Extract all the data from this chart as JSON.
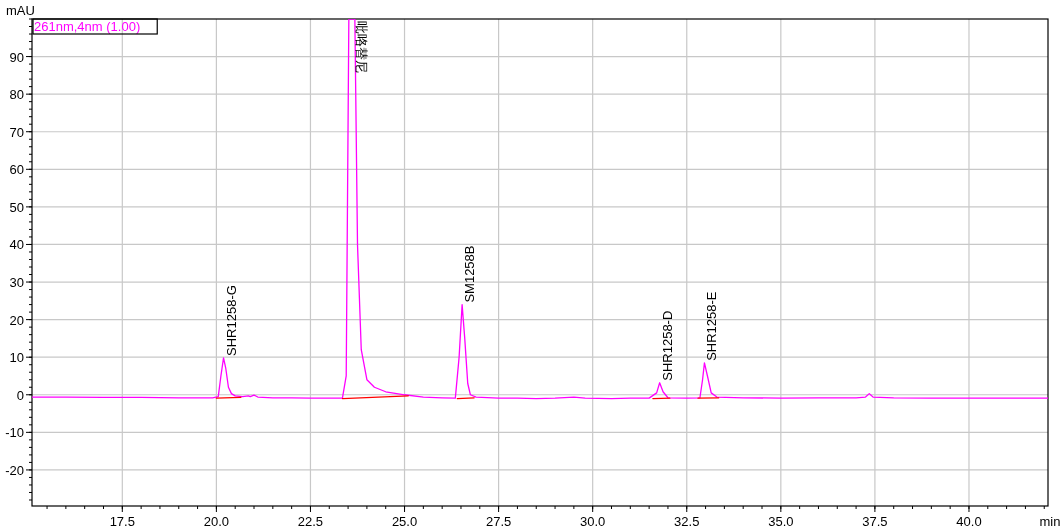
{
  "chart_data": {
    "type": "line",
    "xlabel": "min",
    "ylabel": "mAU",
    "xlim": [
      15.1,
      42.1
    ],
    "ylim": [
      -29.6,
      100
    ],
    "xticks": [
      {
        "value": 17.5,
        "label": "17.5"
      },
      {
        "value": 20,
        "label": "20.0"
      },
      {
        "value": 22.5,
        "label": "22.5"
      },
      {
        "value": 25,
        "label": "25.0"
      },
      {
        "value": 27.5,
        "label": "27.5"
      },
      {
        "value": 30,
        "label": "30.0"
      },
      {
        "value": 32.5,
        "label": "32.5"
      },
      {
        "value": 35,
        "label": "35.0"
      },
      {
        "value": 37.5,
        "label": "37.5"
      },
      {
        "value": 40,
        "label": "40.0"
      }
    ],
    "yticks": [
      -20,
      -10,
      0,
      10,
      20,
      30,
      40,
      50,
      60,
      70,
      80,
      90
    ],
    "grid": true,
    "legend": "top left",
    "marker": "none",
    "line_style": "solid",
    "series": [
      {
        "name": "261nm,4nm (1.00)",
        "color": "#ff00ff",
        "x": [
          15.1,
          16,
          17,
          18,
          19,
          19.9,
          20.05,
          20.12,
          20.19,
          20.25,
          20.32,
          20.4,
          20.5,
          20.7,
          20.85,
          20.9,
          21.0,
          21.1,
          21.5,
          22,
          22.5,
          23,
          23.35,
          23.45,
          23.52,
          23.68,
          23.75,
          23.85,
          24.0,
          24.2,
          24.5,
          25,
          25.5,
          26,
          26.35,
          26.45,
          26.53,
          26.6,
          26.68,
          26.75,
          26.9,
          27.5,
          28,
          28.5,
          29,
          29.5,
          29.8,
          30.5,
          31,
          31.5,
          31.7,
          31.78,
          31.87,
          32,
          32.5,
          32.85,
          32.92,
          32.97,
          33.05,
          33.15,
          33.3,
          34,
          35,
          36,
          37,
          37.25,
          37.35,
          37.45,
          38,
          39,
          40,
          41,
          42.1
        ],
        "values": [
          -0.6,
          -0.6,
          -0.7,
          -0.7,
          -0.8,
          -0.8,
          -0.5,
          5,
          9.8,
          7,
          2,
          0.3,
          -0.3,
          -0.5,
          -0.3,
          -0.5,
          -0.1,
          -0.6,
          -0.8,
          -0.8,
          -0.9,
          -0.9,
          -0.9,
          5,
          100,
          100,
          40,
          12,
          4,
          2,
          0.8,
          0,
          -0.6,
          -0.8,
          -0.9,
          10,
          24,
          15,
          3,
          0,
          -0.6,
          -0.9,
          -0.9,
          -1.0,
          -0.9,
          -0.6,
          -0.9,
          -1.0,
          -0.9,
          -0.9,
          0.5,
          3.2,
          0.8,
          -0.8,
          -0.9,
          -0.8,
          4,
          8.5,
          5,
          0.5,
          -0.6,
          -0.8,
          -0.9,
          -0.8,
          -0.8,
          -0.6,
          0.3,
          -0.6,
          -0.8,
          -0.9,
          -0.9,
          -0.9,
          -0.9
        ]
      },
      {
        "color": "#ff0000",
        "x": [
          20.0,
          20.65
        ],
        "values": [
          -0.9,
          -0.7
        ]
      },
      {
        "color": "#ff0000",
        "x": [
          23.35,
          25.1
        ],
        "values": [
          -1.0,
          -0.3
        ]
      },
      {
        "color": "#ff0000",
        "x": [
          26.4,
          26.85
        ],
        "values": [
          -1.0,
          -0.8
        ]
      },
      {
        "color": "#ff0000",
        "x": [
          31.6,
          32.05
        ],
        "values": [
          -1.0,
          -0.9
        ]
      },
      {
        "color": "#ff0000",
        "x": [
          32.8,
          33.35
        ],
        "values": [
          -0.9,
          -0.8
        ]
      }
    ],
    "annotations": [
      {
        "text": "SHR1258-G",
        "x": 20.19,
        "y": 9.8
      },
      {
        "text": "吡咯替尼",
        "x": 23.68,
        "y": 100
      },
      {
        "text": "SM1258B",
        "x": 26.53,
        "y": 24
      },
      {
        "text": "SHR1258-D",
        "x": 31.78,
        "y": 3.2
      },
      {
        "text": "SHR1258-E",
        "x": 32.97,
        "y": 8.5
      }
    ]
  }
}
